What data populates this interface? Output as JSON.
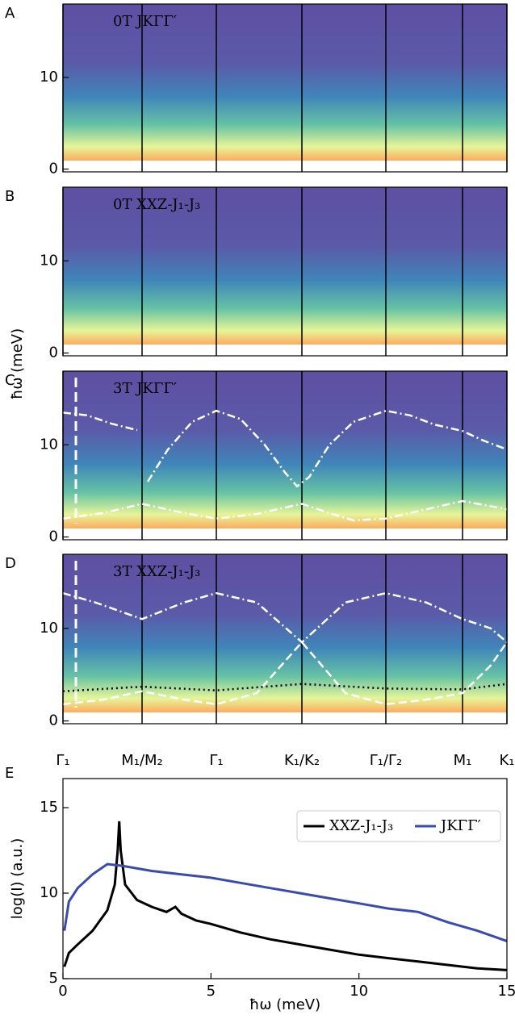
{
  "chart_data": [
    {
      "type": "heatmap",
      "panel_label": "A",
      "title": "0T JKΓΓ′",
      "ylim": [
        -0.3,
        18
      ],
      "yticks": [
        0,
        10
      ]
    },
    {
      "type": "heatmap",
      "panel_label": "B",
      "title": "0T XXZ-J₁-J₃",
      "ylim": [
        -0.3,
        18
      ],
      "yticks": [
        0,
        10
      ],
      "y_label": "ħω (meV)"
    },
    {
      "type": "heatmap",
      "panel_label": "C",
      "title": "3T JKΓΓ′",
      "ylim": [
        -0.3,
        18
      ],
      "yticks": [
        0,
        10
      ],
      "series": [
        {
          "color": "#ffffff",
          "style": "dash-dot",
          "x": [
            0,
            0.3,
            0.6,
            0.92,
            0.95,
            1.05,
            1.3,
            1.6,
            1.9,
            2.2,
            2.5,
            2.75,
            2.9,
            3.05,
            3.3,
            3.6,
            4.0,
            4.3,
            4.6,
            4.95,
            5.2,
            5.5
          ],
          "values": [
            13.5,
            13.2,
            12.3,
            11.6,
            null,
            6,
            9.5,
            12.5,
            13.7,
            12.8,
            10,
            7,
            5.5,
            6.5,
            10,
            12.5,
            13.7,
            13.2,
            12.2,
            11.5,
            10.5,
            9.5
          ]
        },
        {
          "color": "#ffffff",
          "style": "dash-dot",
          "x": [
            0,
            0.5,
            0.98,
            1.5,
            1.9,
            2.4,
            2.96,
            3.3,
            3.6,
            4.0,
            4.5,
            4.95,
            5.2,
            5.5
          ],
          "values": [
            2,
            2.6,
            3.6,
            2.6,
            2,
            2.5,
            3.6,
            2.6,
            1.8,
            2,
            3,
            3.9,
            3.5,
            3
          ]
        }
      ]
    },
    {
      "type": "heatmap",
      "panel_label": "D",
      "title": "3T XXZ-J₁-J₃",
      "ylim": [
        -0.3,
        18
      ],
      "yticks": [
        0,
        10
      ],
      "xlim": [
        0,
        5.5
      ],
      "xticks": [
        {
          "value": 0,
          "label": "Γ₁"
        },
        {
          "value": 0.98,
          "label": "M₁/M₂"
        },
        {
          "value": 1.9,
          "label": "Γ₁"
        },
        {
          "value": 2.96,
          "label": "K₁/K₂"
        },
        {
          "value": 4.0,
          "label": "Γ₁/Γ₂"
        },
        {
          "value": 4.95,
          "label": "M₁"
        },
        {
          "value": 5.5,
          "label": "K₁"
        }
      ],
      "series": [
        {
          "color": "#ffffff",
          "style": "dash-dot",
          "x": [
            0,
            0.4,
            0.98,
            1.5,
            1.9,
            2.4,
            2.96,
            3.5,
            4.0,
            4.5,
            4.95,
            5.3,
            5.5
          ],
          "values": [
            13.8,
            12.8,
            11,
            12.8,
            13.8,
            12.8,
            8.5,
            12.8,
            13.8,
            12.8,
            11,
            10,
            8.5
          ]
        },
        {
          "color": "#ffffff",
          "style": "dashed",
          "x": [
            0,
            0.5,
            0.98,
            1.5,
            1.9,
            2.4,
            2.96,
            3.5,
            4.0,
            4.5,
            4.95,
            5.3,
            5.5
          ],
          "values": [
            1.8,
            2.3,
            3.2,
            2.3,
            1.8,
            3,
            8.5,
            3,
            1.8,
            2.3,
            3,
            6,
            8.5
          ]
        },
        {
          "color": "#000000",
          "style": "dotted",
          "x": [
            0,
            0.98,
            1.9,
            2.96,
            4.0,
            4.95,
            5.5
          ],
          "values": [
            3.2,
            3.7,
            3.3,
            4,
            3.5,
            3.4,
            4
          ]
        }
      ]
    },
    {
      "type": "line",
      "panel_label": "E",
      "x_label": "ħω (meV)",
      "y_label": "log(I) (a.u.)",
      "xlim": [
        0,
        15
      ],
      "ylim": [
        5,
        16.7
      ],
      "xticks": [
        0,
        5,
        10,
        15
      ],
      "yticks": [
        5,
        10,
        15
      ],
      "legend": "upper right",
      "series": [
        {
          "name": "XXZ-J₁-J₃",
          "color": "#000000",
          "x": [
            0.05,
            0.2,
            0.5,
            1,
            1.5,
            1.75,
            1.85,
            1.9,
            1.95,
            2.1,
            2.5,
            3,
            3.5,
            3.8,
            4,
            4.5,
            5,
            6,
            7,
            8,
            9,
            10,
            11,
            12,
            13,
            14,
            15
          ],
          "values": [
            5.7,
            6.5,
            7,
            7.8,
            9,
            10.5,
            12.5,
            14.2,
            12.5,
            10.5,
            9.6,
            9.2,
            8.9,
            9.2,
            8.8,
            8.4,
            8.2,
            7.7,
            7.3,
            7,
            6.7,
            6.4,
            6.2,
            6,
            5.8,
            5.6,
            5.5
          ]
        },
        {
          "name": "JKΓΓ′",
          "color": "#3a4bb0",
          "x": [
            0.05,
            0.2,
            0.5,
            1,
            1.5,
            2,
            3,
            4,
            5,
            6,
            7,
            8,
            9,
            10,
            11,
            12,
            13,
            14,
            15
          ],
          "values": [
            7.8,
            9.5,
            10.3,
            11.1,
            11.7,
            11.6,
            11.3,
            11.1,
            10.9,
            10.6,
            10.3,
            10,
            9.7,
            9.4,
            9.1,
            8.9,
            8.3,
            7.8,
            7.2
          ]
        }
      ]
    }
  ]
}
